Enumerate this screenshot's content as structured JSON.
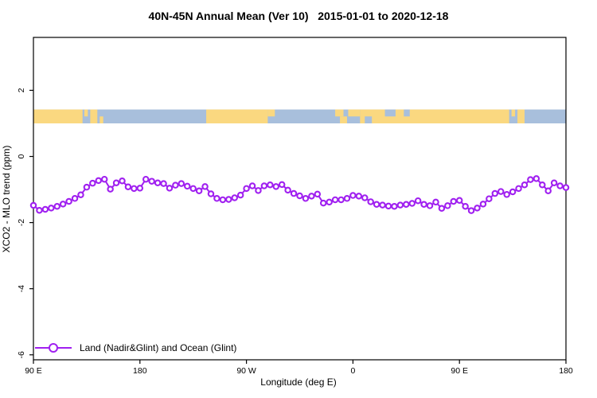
{
  "chart_data": {
    "type": "line",
    "title": "40N-45N Annual Mean (Ver 10)   2015-01-01 to 2020-12-18",
    "xlabel": "Longitude (deg E)",
    "ylabel": "XCO2 - MLO trend (ppm)",
    "xlim": [
      90,
      540
    ],
    "ylim": [
      -6.15,
      3.6
    ],
    "grid": false,
    "legend_position": "bottom-left-inside",
    "x_ticks": [
      {
        "value": 90,
        "label": "90 E"
      },
      {
        "value": 180,
        "label": "180"
      },
      {
        "value": 270,
        "label": "90 W"
      },
      {
        "value": 360,
        "label": "0"
      },
      {
        "value": 450,
        "label": "90 E"
      },
      {
        "value": 540,
        "label": "180"
      }
    ],
    "y_ticks": [
      {
        "value": 2,
        "label": "2"
      },
      {
        "value": 0,
        "label": "0"
      },
      {
        "value": -2,
        "label": "-2"
      },
      {
        "value": -4,
        "label": "-4"
      },
      {
        "value": -6,
        "label": "-6"
      }
    ],
    "series": [
      {
        "name": "Land (Nadir&Glint) and Ocean (Glint)",
        "color": "#A020F0",
        "marker": "open-circle",
        "x": [
          90,
          95,
          100,
          105,
          110,
          115,
          120,
          125,
          130,
          135,
          140,
          145,
          150,
          155,
          160,
          165,
          170,
          175,
          180,
          185,
          190,
          195,
          200,
          205,
          210,
          215,
          220,
          225,
          230,
          235,
          240,
          245,
          250,
          255,
          260,
          265,
          270,
          275,
          280,
          285,
          290,
          295,
          300,
          305,
          310,
          315,
          320,
          325,
          330,
          335,
          340,
          345,
          350,
          355,
          360,
          365,
          370,
          375,
          380,
          385,
          390,
          395,
          400,
          405,
          410,
          415,
          420,
          425,
          430,
          435,
          440,
          445,
          450,
          455,
          460,
          465,
          470,
          475,
          480,
          485,
          490,
          495,
          500,
          505,
          510,
          515,
          520,
          525,
          530,
          535,
          540
        ],
        "y": [
          -1.48,
          -1.63,
          -1.6,
          -1.56,
          -1.51,
          -1.44,
          -1.36,
          -1.27,
          -1.16,
          -0.93,
          -0.81,
          -0.73,
          -0.69,
          -0.99,
          -0.8,
          -0.74,
          -0.92,
          -0.97,
          -0.96,
          -0.69,
          -0.75,
          -0.8,
          -0.82,
          -0.96,
          -0.87,
          -0.82,
          -0.9,
          -0.97,
          -1.04,
          -0.91,
          -1.13,
          -1.27,
          -1.31,
          -1.3,
          -1.25,
          -1.17,
          -0.97,
          -0.89,
          -1.03,
          -0.89,
          -0.86,
          -0.91,
          -0.85,
          -1.02,
          -1.12,
          -1.19,
          -1.27,
          -1.2,
          -1.14,
          -1.41,
          -1.38,
          -1.31,
          -1.31,
          -1.27,
          -1.18,
          -1.2,
          -1.25,
          -1.37,
          -1.45,
          -1.47,
          -1.5,
          -1.51,
          -1.47,
          -1.45,
          -1.42,
          -1.34,
          -1.45,
          -1.49,
          -1.38,
          -1.57,
          -1.49,
          -1.36,
          -1.33,
          -1.51,
          -1.64,
          -1.56,
          -1.44,
          -1.28,
          -1.12,
          -1.06,
          -1.15,
          -1.07,
          -0.97,
          -0.86,
          -0.7,
          -0.67,
          -0.86,
          -1.04,
          -0.8,
          -0.89,
          -0.94
        ]
      }
    ],
    "surface_band": {
      "description": "land/ocean strip along 40N-45N",
      "y_from": 1.0,
      "y_to": 1.42,
      "land_color": "#FAD880",
      "ocean_color": "#A8BFDC",
      "segments": [
        {
          "surface": "ocean",
          "from": 90,
          "to": 540,
          "row": "full"
        },
        {
          "surface": "land",
          "from": 90,
          "to": 131.5,
          "row": "full"
        },
        {
          "surface": "land",
          "from": 133,
          "to": 136,
          "row": "top"
        },
        {
          "surface": "land",
          "from": 138,
          "to": 144,
          "row": "full"
        },
        {
          "surface": "land",
          "from": 146,
          "to": 149,
          "row": "bottom"
        },
        {
          "surface": "land",
          "from": 236,
          "to": 288,
          "row": "full"
        },
        {
          "surface": "land",
          "from": 288,
          "to": 294,
          "row": "top"
        },
        {
          "surface": "land",
          "from": 345,
          "to": 352,
          "row": "top"
        },
        {
          "surface": "land",
          "from": 349,
          "to": 355,
          "row": "bottom"
        },
        {
          "surface": "land",
          "from": 356,
          "to": 366,
          "row": "top"
        },
        {
          "surface": "land",
          "from": 366,
          "to": 492,
          "row": "full"
        },
        {
          "surface": "ocean",
          "from": 370,
          "to": 376,
          "row": "bottom"
        },
        {
          "surface": "ocean",
          "from": 387,
          "to": 396,
          "row": "top"
        },
        {
          "surface": "ocean",
          "from": 403,
          "to": 408,
          "row": "top"
        },
        {
          "surface": "land",
          "from": 494,
          "to": 497,
          "row": "top"
        },
        {
          "surface": "land",
          "from": 499,
          "to": 505,
          "row": "full"
        }
      ]
    },
    "legend": {
      "label": "Land (Nadir&Glint) and Ocean (Glint)"
    }
  }
}
